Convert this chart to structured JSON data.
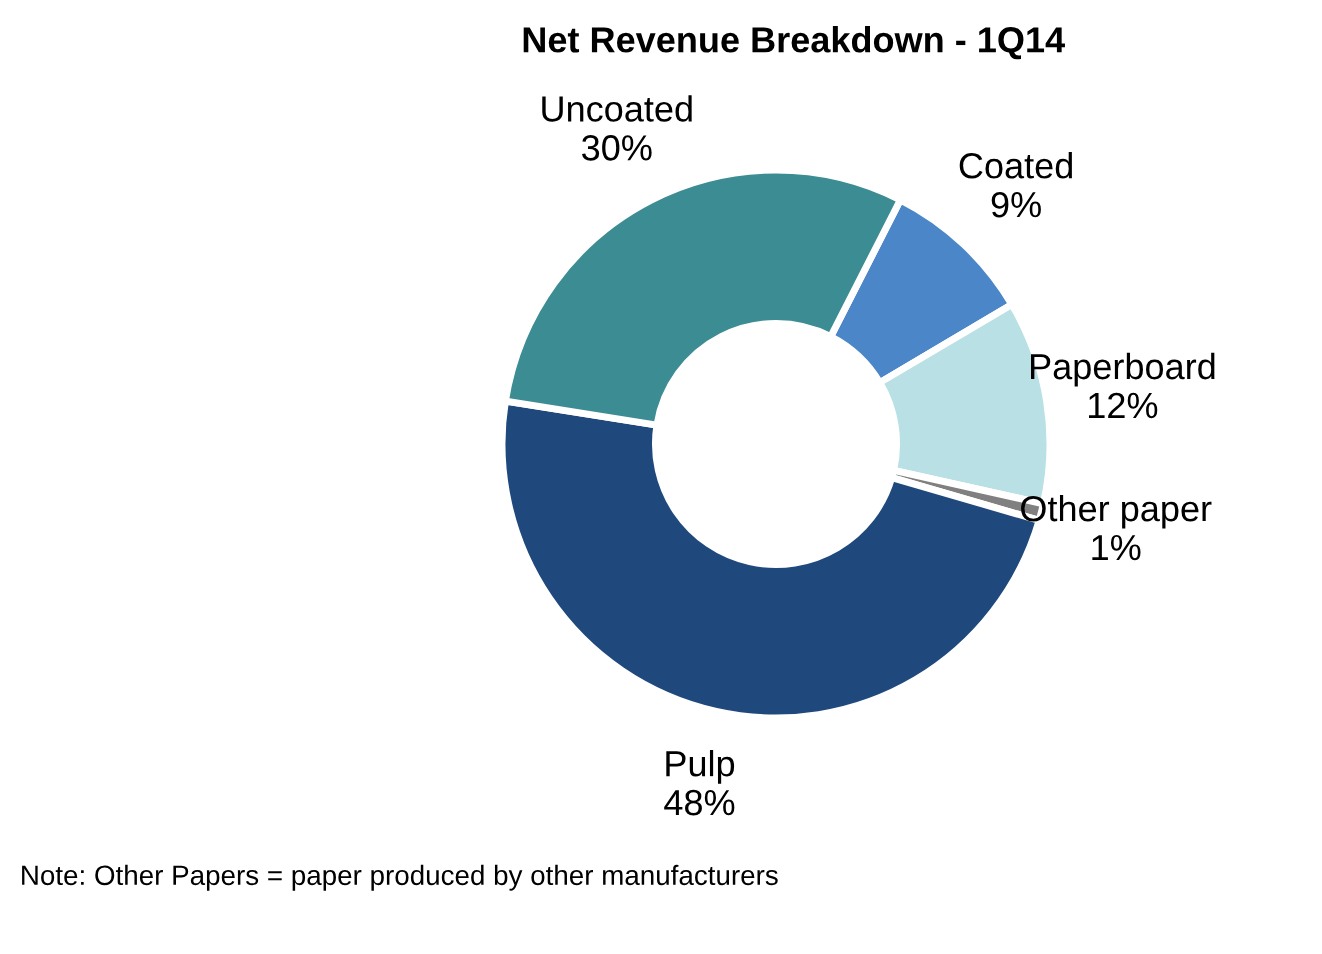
{
  "chart_data": {
    "type": "donut",
    "title": "Net Revenue Breakdown - 1Q14",
    "categories": [
      "Coated",
      "Paperboard",
      "Other paper",
      "Pulp",
      "Uncoated"
    ],
    "values": [
      9,
      12,
      1,
      48,
      30
    ],
    "colors": [
      "#4a86c8",
      "#b9e0e4",
      "#808080",
      "#1f497d",
      "#3c8c93"
    ],
    "value_labels": [
      "9%",
      "12%",
      "1%",
      "48%",
      "30%"
    ],
    "annotations": [
      "Note: Other Papers = paper produced by other manufacturers"
    ]
  }
}
